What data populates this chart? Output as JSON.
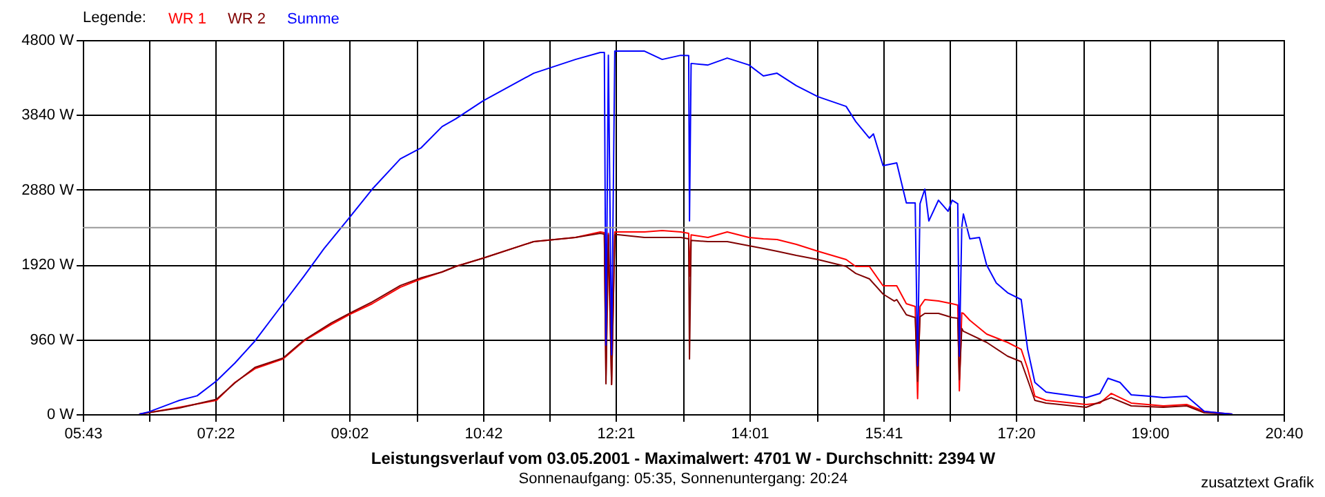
{
  "chart_data": {
    "type": "line",
    "title": "Leistungsverlauf vom 03.05.2001 - Maximalwert: 4701 W - Durchschnitt: 2394 W",
    "subtitle": "Sonnenaufgang: 05:35, Sonnenuntergang: 20:24",
    "legend_title": "Legende:",
    "annotations": [
      "zusatztext Grafik"
    ],
    "xlim": [
      5.7167,
      20.6667
    ],
    "xticks": [
      {
        "value": 5.7167,
        "label": "05:43"
      },
      {
        "value": 6.5472,
        "label": null
      },
      {
        "value": 7.3667,
        "label": "07:22"
      },
      {
        "value": 8.2083,
        "label": null
      },
      {
        "value": 9.0333,
        "label": "09:02"
      },
      {
        "value": 9.8694,
        "label": null
      },
      {
        "value": 10.7,
        "label": "10:42"
      },
      {
        "value": 11.5306,
        "label": null
      },
      {
        "value": 12.35,
        "label": "12:21"
      },
      {
        "value": 13.1917,
        "label": null
      },
      {
        "value": 14.0167,
        "label": "14:01"
      },
      {
        "value": 14.8528,
        "label": null
      },
      {
        "value": 15.6833,
        "label": "15:41"
      },
      {
        "value": 16.5139,
        "label": null
      },
      {
        "value": 17.3333,
        "label": "17:20"
      },
      {
        "value": 18.175,
        "label": null
      },
      {
        "value": 19.0,
        "label": "19:00"
      },
      {
        "value": 19.8361,
        "label": null
      },
      {
        "value": 20.6667,
        "label": "20:40"
      }
    ],
    "ylim": [
      0,
      4800
    ],
    "yticks": [
      {
        "value": 0,
        "label": "0 W"
      },
      {
        "value": 960,
        "label": "960 W"
      },
      {
        "value": 1920,
        "label": "1920 W"
      },
      {
        "value": 2880,
        "label": "2880 W"
      },
      {
        "value": 3840,
        "label": "3840 W"
      },
      {
        "value": 4800,
        "label": "4800 W"
      }
    ],
    "grid": true,
    "legend": "top left",
    "line_style": "solid",
    "marker": "none",
    "ref_lines": [
      {
        "axis": "y",
        "value": 2394,
        "label": null,
        "color": "#999999"
      }
    ],
    "series": [
      {
        "name": "WR 1",
        "color": "#ff0000",
        "x": [
          6.42,
          6.92,
          7.38,
          7.61,
          7.86,
          8.21,
          8.47,
          8.81,
          9.03,
          9.32,
          9.67,
          9.93,
          10.19,
          10.36,
          10.7,
          11.33,
          11.85,
          12.16,
          12.21,
          12.23,
          12.26,
          12.3,
          12.34,
          12.38,
          12.71,
          12.93,
          13.16,
          13.26,
          13.27,
          13.29,
          13.5,
          13.74,
          14.01,
          14.19,
          14.36,
          14.6,
          14.87,
          15.22,
          15.34,
          15.51,
          15.68,
          15.85,
          15.97,
          16.08,
          16.11,
          16.14,
          16.2,
          16.37,
          16.54,
          16.61,
          16.63,
          16.66,
          16.68,
          16.76,
          16.97,
          17.23,
          17.4,
          17.48,
          17.57,
          17.71,
          18.21,
          18.38,
          18.52,
          18.77,
          19.17,
          19.46,
          19.68,
          20.03
        ],
        "values": [
          0,
          89,
          177,
          407,
          584,
          708,
          939,
          1151,
          1275,
          1417,
          1629,
          1736,
          1824,
          1895,
          2001,
          2214,
          2267,
          2338,
          2330,
          495,
          2320,
          380,
          2338,
          2338,
          2338,
          2356,
          2338,
          2320,
          1771,
          2300,
          2267,
          2338,
          2267,
          2249,
          2240,
          2178,
          2090,
          1984,
          1895,
          1895,
          1647,
          1647,
          1417,
          1381,
          200,
          1380,
          1470,
          1452,
          1417,
          1400,
          300,
          1300,
          1293,
          1204,
          1027,
          921,
          832,
          584,
          230,
          177,
          124,
          142,
          266,
          142,
          106,
          124,
          35,
          0
        ]
      },
      {
        "name": "WR 2",
        "color": "#800000",
        "x": [
          6.42,
          6.92,
          7.38,
          7.61,
          7.86,
          8.21,
          8.47,
          8.81,
          9.03,
          9.32,
          9.67,
          9.93,
          10.19,
          10.36,
          10.7,
          11.33,
          11.85,
          12.16,
          12.21,
          12.23,
          12.26,
          12.3,
          12.34,
          12.38,
          12.71,
          12.93,
          13.16,
          13.26,
          13.27,
          13.29,
          13.5,
          13.74,
          14.01,
          14.19,
          14.36,
          14.6,
          14.87,
          15.22,
          15.34,
          15.51,
          15.68,
          15.82,
          15.85,
          15.97,
          16.08,
          16.11,
          16.14,
          16.2,
          16.37,
          16.54,
          16.61,
          16.63,
          16.66,
          16.68,
          16.97,
          17.23,
          17.4,
          17.48,
          17.57,
          17.71,
          18.21,
          18.52,
          18.77,
          19.17,
          19.46,
          19.68,
          20.03
        ],
        "values": [
          0,
          80,
          190,
          400,
          600,
          720,
          950,
          1170,
          1290,
          1440,
          1650,
          1750,
          1824,
          1895,
          2001,
          2214,
          2267,
          2320,
          2310,
          390,
          2300,
          380,
          2302,
          2302,
          2267,
          2267,
          2267,
          2250,
          708,
          2230,
          2214,
          2214,
          2161,
          2125,
          2090,
          2037,
          1984,
          1895,
          1806,
          1736,
          1541,
          1452,
          1470,
          1275,
          1240,
          420,
          1250,
          1293,
          1293,
          1240,
          1230,
          443,
          1100,
          1063,
          921,
          744,
          673,
          443,
          177,
          142,
          89,
          212,
          106,
          89,
          106,
          18,
          0
        ]
      },
      {
        "name": "Summe",
        "color": "#0000ff",
        "x": [
          6.42,
          6.54,
          6.92,
          7.14,
          7.38,
          7.61,
          7.86,
          8.21,
          8.47,
          8.72,
          9.03,
          9.32,
          9.67,
          9.93,
          10.19,
          10.36,
          10.7,
          11.33,
          11.85,
          12.16,
          12.21,
          12.23,
          12.26,
          12.3,
          12.34,
          12.71,
          12.93,
          13.16,
          13.26,
          13.27,
          13.29,
          13.5,
          13.74,
          14.01,
          14.19,
          14.36,
          14.6,
          14.87,
          15.22,
          15.34,
          15.51,
          15.56,
          15.68,
          15.85,
          15.97,
          16.08,
          16.11,
          16.14,
          16.2,
          16.25,
          16.37,
          16.49,
          16.54,
          16.61,
          16.63,
          16.66,
          16.68,
          16.76,
          16.88,
          16.97,
          17.09,
          17.23,
          17.4,
          17.48,
          17.57,
          17.71,
          17.96,
          18.21,
          18.38,
          18.48,
          18.63,
          18.77,
          19.0,
          19.17,
          19.46,
          19.68,
          20.03
        ],
        "values": [
          0,
          30,
          177,
          236,
          425,
          655,
          939,
          1417,
          1771,
          2125,
          2515,
          2887,
          3276,
          3418,
          3690,
          3790,
          4020,
          4374,
          4551,
          4640,
          4640,
          885,
          4605,
          762,
          4658,
          4658,
          4551,
          4604,
          4600,
          2479,
          4500,
          4480,
          4569,
          4480,
          4339,
          4374,
          4215,
          4073,
          3949,
          3754,
          3542,
          3595,
          3188,
          3223,
          2710,
          2710,
          620,
          2700,
          2887,
          2479,
          2745,
          2603,
          2745,
          2700,
          744,
          2400,
          2568,
          2249,
          2267,
          1913,
          1682,
          1558,
          1470,
          832,
          407,
          283,
          248,
          212,
          266,
          460,
          407,
          248,
          230,
          212,
          230,
          35,
          0
        ]
      }
    ]
  }
}
